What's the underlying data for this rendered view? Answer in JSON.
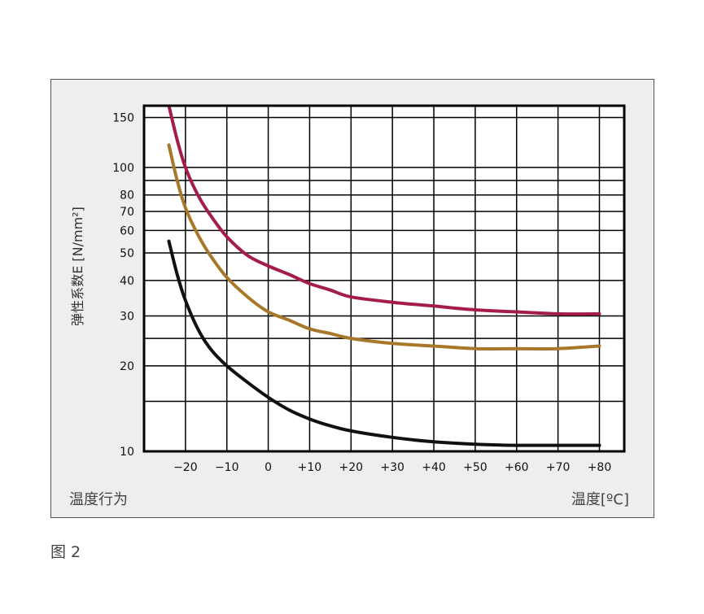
{
  "chart_data": {
    "type": "line",
    "ylabel": "弹性系数E [N/mm²]",
    "xlabel": "温度[ºC]",
    "corner_note": "温度行为",
    "yscale": "log",
    "ylim": [
      10,
      165
    ],
    "xlim": [
      -30,
      86
    ],
    "grid": true,
    "yticks": [
      10,
      20,
      30,
      40,
      50,
      60,
      70,
      80,
      100,
      150
    ],
    "ytick_labels": [
      "10",
      "20",
      "30",
      "40",
      "50",
      "60",
      "70",
      "80",
      "100",
      "150"
    ],
    "ygrid": [
      10,
      15,
      20,
      25,
      30,
      40,
      50,
      60,
      70,
      80,
      90,
      100,
      150
    ],
    "xticks": [
      -20,
      -10,
      0,
      10,
      20,
      30,
      40,
      50,
      60,
      70,
      80
    ],
    "xtick_labels": [
      "−20",
      "−10",
      "0",
      "+10",
      "+20",
      "+30",
      "+40",
      "+50",
      "+60",
      "+70",
      "+80"
    ],
    "series": [
      {
        "color": "#a51c4a",
        "x": [
          -24,
          -22,
          -20,
          -17,
          -14,
          -10,
          -5,
          0,
          5,
          10,
          15,
          20,
          30,
          40,
          50,
          60,
          70,
          80
        ],
        "y": [
          165,
          125,
          100,
          80,
          68,
          57,
          49,
          45,
          42,
          39,
          37,
          35,
          33.5,
          32.5,
          31.5,
          31,
          30.5,
          30.5
        ]
      },
      {
        "color": "#a8782a",
        "x": [
          -24,
          -22,
          -20,
          -17,
          -14,
          -10,
          -5,
          0,
          5,
          10,
          15,
          20,
          30,
          40,
          50,
          60,
          70,
          80
        ],
        "y": [
          120,
          90,
          72,
          58,
          49,
          41,
          35,
          31,
          29,
          27,
          26,
          25,
          24,
          23.5,
          23,
          23,
          23,
          23.5
        ]
      },
      {
        "color": "#111111",
        "x": [
          -24,
          -22,
          -20,
          -17,
          -14,
          -10,
          -5,
          0,
          5,
          10,
          15,
          20,
          30,
          40,
          50,
          60,
          70,
          80
        ],
        "y": [
          55,
          42,
          34,
          27,
          23,
          20,
          17.5,
          15.5,
          14,
          13,
          12.3,
          11.8,
          11.2,
          10.8,
          10.6,
          10.5,
          10.5,
          10.5
        ]
      }
    ]
  },
  "figure_caption": "图 2"
}
